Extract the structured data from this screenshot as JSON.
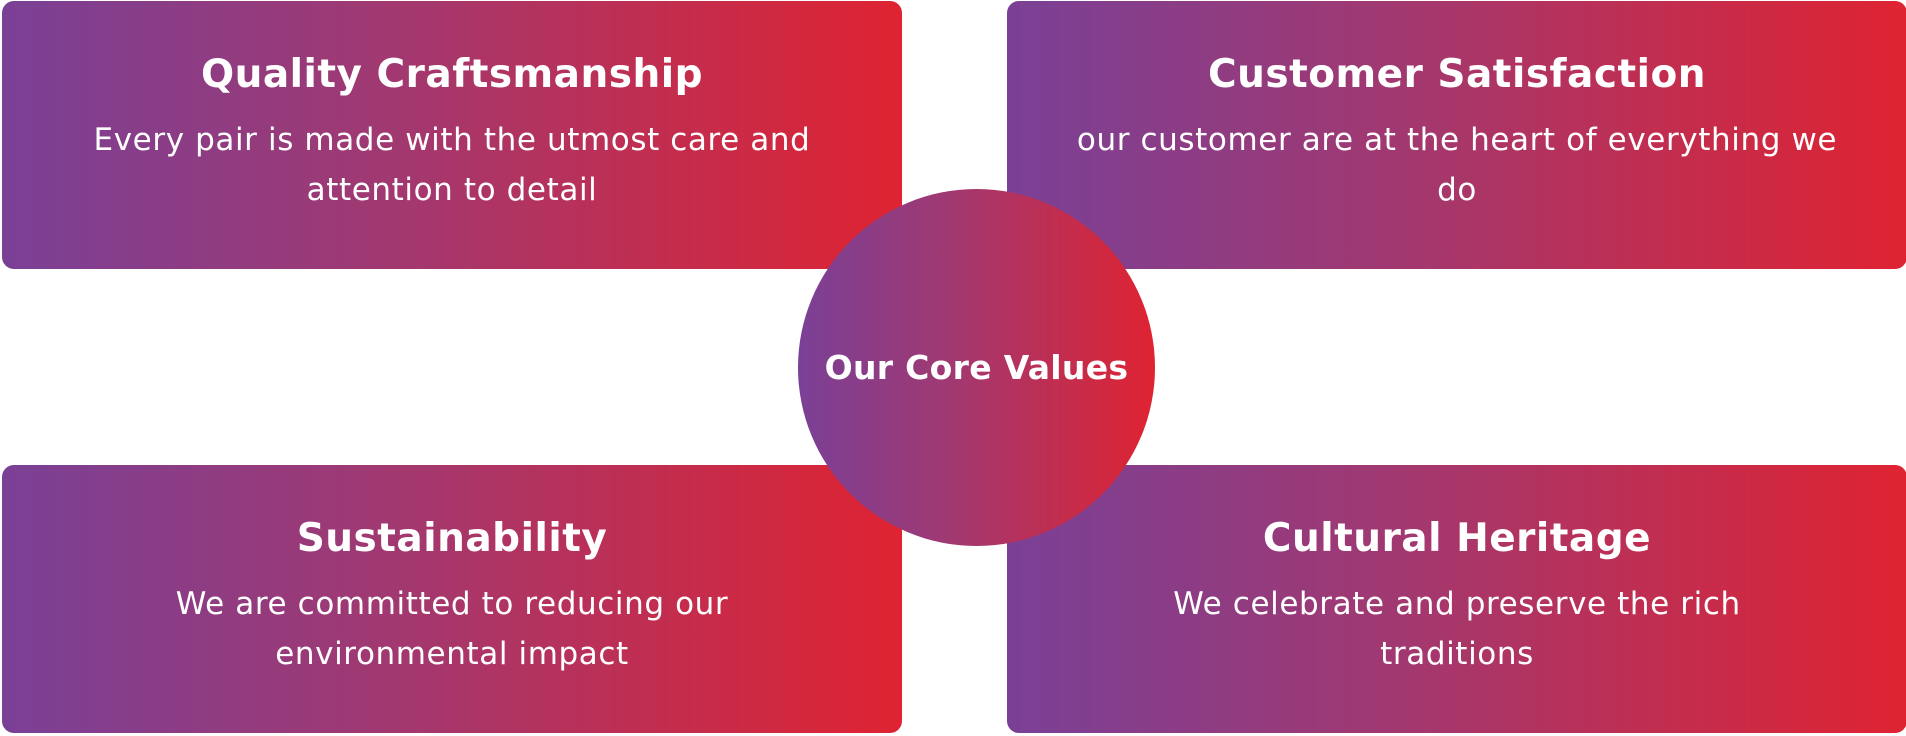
{
  "center": {
    "title": "Our Core Values"
  },
  "values": [
    {
      "title": "Quality Craftsmanship",
      "description": "Every pair is made with the utmost care and attention to detail"
    },
    {
      "title": "Customer Satisfaction",
      "description": "our customer are at the heart of everything we do"
    },
    {
      "title": "Sustainability",
      "description": "We are committed to reducing our environmental impact"
    },
    {
      "title": "Cultural Heritage",
      "description": "We celebrate and preserve the rich traditions"
    }
  ],
  "colors": {
    "gradient_start": "#7a4096",
    "gradient_mid": "#a3386f",
    "gradient_end": "#df2331",
    "text": "#ffffff",
    "background": "#ffffff"
  }
}
